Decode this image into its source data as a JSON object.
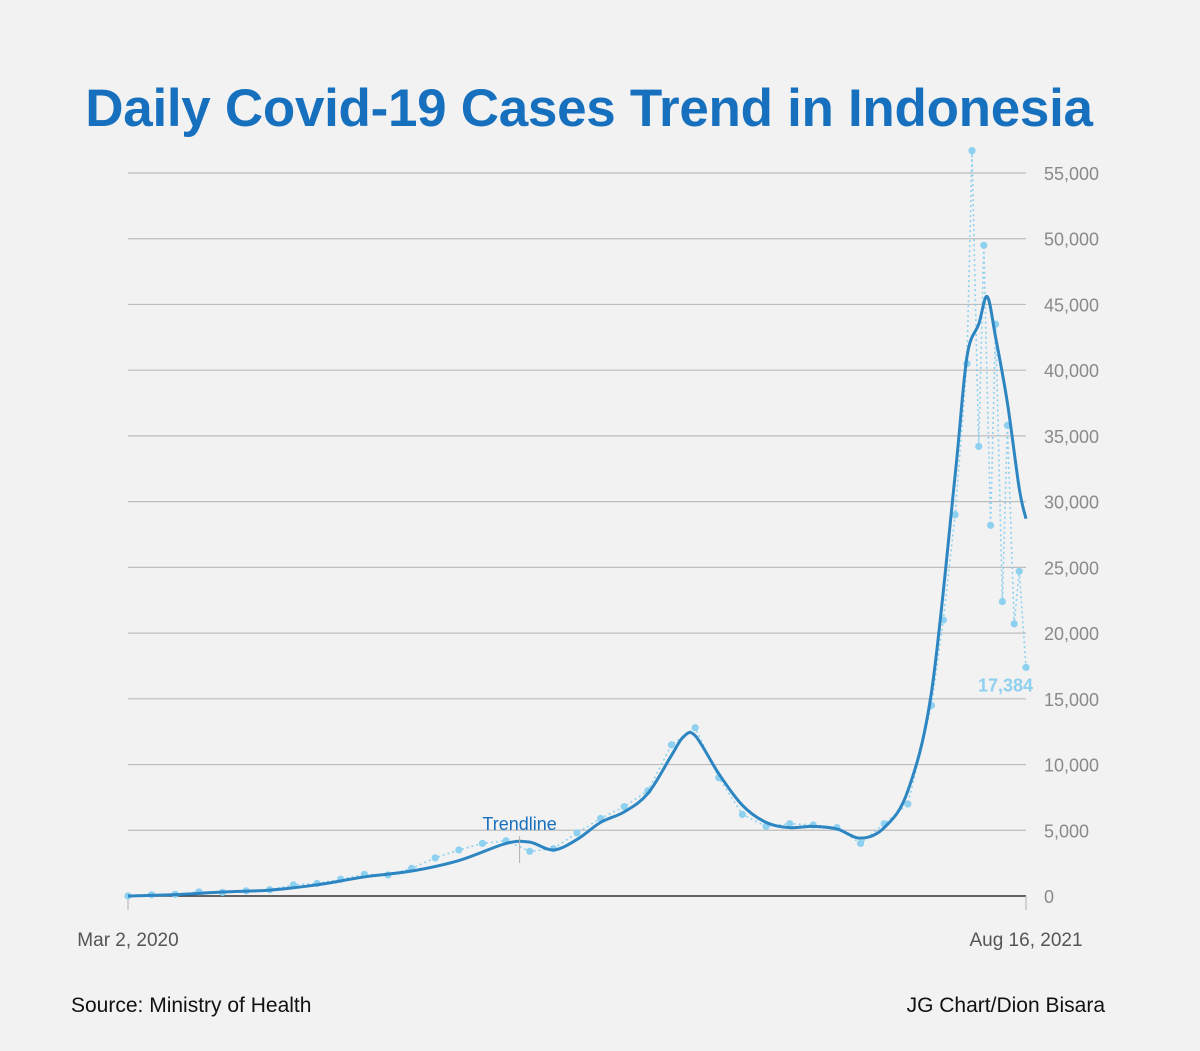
{
  "title": "Daily Covid-19 Cases Trend in Indonesia",
  "source": "Source: Ministry of Health",
  "credit": "JG Chart/Dion Bisara",
  "colors": {
    "title": "#1770bd",
    "points": "#8ed0ef",
    "trend": "#2d86c2",
    "grid": "#bdbdbd",
    "axis": "#333333",
    "tick_label": "#8a8a8a"
  },
  "chart_data": {
    "type": "line",
    "title": "Daily Covid-19 Cases Trend in Indonesia",
    "xlabel": "",
    "ylabel": "",
    "x_range": [
      "2020-03-02",
      "2021-08-16"
    ],
    "x_tick_labels": [
      "Mar 2, 2020",
      "Aug 16, 2021"
    ],
    "ylim": [
      0,
      55000
    ],
    "y_ticks": [
      0,
      5000,
      10000,
      15000,
      20000,
      25000,
      30000,
      35000,
      40000,
      45000,
      50000,
      55000
    ],
    "y_tick_labels": [
      "0",
      "5,000",
      "10,000",
      "15,000",
      "20,000",
      "25,000",
      "30,000",
      "35,000",
      "40,000",
      "45,000",
      "50,000",
      "55,000"
    ],
    "grid": true,
    "y_axis_side": "right",
    "annotations": [
      {
        "text": "Trendline",
        "x": "2020-10-20",
        "y": 1900
      },
      {
        "text": "17,384",
        "x": "2021-08-16",
        "y": 17384
      }
    ],
    "series": [
      {
        "name": "",
        "style": "dotted-line-with-points",
        "points": [
          [
            "2020-03-02",
            2
          ],
          [
            "2020-03-16",
            100
          ],
          [
            "2020-03-30",
            130
          ],
          [
            "2020-04-13",
            320
          ],
          [
            "2020-04-27",
            270
          ],
          [
            "2020-05-11",
            390
          ],
          [
            "2020-05-25",
            480
          ],
          [
            "2020-06-08",
            850
          ],
          [
            "2020-06-22",
            950
          ],
          [
            "2020-07-06",
            1280
          ],
          [
            "2020-07-20",
            1650
          ],
          [
            "2020-08-03",
            1600
          ],
          [
            "2020-08-17",
            2100
          ],
          [
            "2020-08-31",
            2900
          ],
          [
            "2020-09-14",
            3500
          ],
          [
            "2020-09-28",
            4000
          ],
          [
            "2020-10-12",
            4200
          ],
          [
            "2020-10-26",
            3400
          ],
          [
            "2020-11-09",
            3600
          ],
          [
            "2020-11-23",
            4800
          ],
          [
            "2020-12-07",
            5900
          ],
          [
            "2020-12-21",
            6800
          ],
          [
            "2021-01-04",
            8000
          ],
          [
            "2021-01-18",
            11500
          ],
          [
            "2021-02-01",
            12800
          ],
          [
            "2021-02-15",
            9000
          ],
          [
            "2021-03-01",
            6200
          ],
          [
            "2021-03-15",
            5300
          ],
          [
            "2021-03-29",
            5500
          ],
          [
            "2021-04-12",
            5400
          ],
          [
            "2021-04-26",
            5200
          ],
          [
            "2021-05-10",
            4000
          ],
          [
            "2021-05-24",
            5500
          ],
          [
            "2021-06-07",
            7000
          ],
          [
            "2021-06-21",
            14500
          ],
          [
            "2021-06-28",
            21000
          ],
          [
            "2021-07-05",
            29000
          ],
          [
            "2021-07-12",
            40500
          ],
          [
            "2021-07-15",
            56700
          ],
          [
            "2021-07-19",
            34200
          ],
          [
            "2021-07-22",
            49500
          ],
          [
            "2021-07-26",
            28200
          ],
          [
            "2021-07-29",
            43500
          ],
          [
            "2021-08-02",
            22400
          ],
          [
            "2021-08-05",
            35800
          ],
          [
            "2021-08-09",
            20700
          ],
          [
            "2021-08-12",
            24700
          ],
          [
            "2021-08-16",
            17384
          ]
        ]
      },
      {
        "name": "Trendline",
        "style": "solid-line",
        "points": [
          [
            "2020-03-02",
            0
          ],
          [
            "2020-03-30",
            100
          ],
          [
            "2020-04-27",
            300
          ],
          [
            "2020-05-25",
            450
          ],
          [
            "2020-06-22",
            850
          ],
          [
            "2020-07-20",
            1450
          ],
          [
            "2020-08-17",
            1900
          ],
          [
            "2020-09-14",
            2700
          ],
          [
            "2020-10-12",
            4000
          ],
          [
            "2020-10-26",
            4100
          ],
          [
            "2020-11-09",
            3500
          ],
          [
            "2020-11-23",
            4300
          ],
          [
            "2020-12-07",
            5600
          ],
          [
            "2020-12-21",
            6400
          ],
          [
            "2021-01-04",
            7800
          ],
          [
            "2021-01-18",
            10700
          ],
          [
            "2021-01-25",
            12100
          ],
          [
            "2021-02-01",
            12200
          ],
          [
            "2021-02-15",
            9300
          ],
          [
            "2021-03-01",
            6900
          ],
          [
            "2021-03-15",
            5600
          ],
          [
            "2021-03-29",
            5200
          ],
          [
            "2021-04-12",
            5300
          ],
          [
            "2021-04-26",
            5100
          ],
          [
            "2021-05-10",
            4400
          ],
          [
            "2021-05-24",
            5200
          ],
          [
            "2021-06-07",
            8000
          ],
          [
            "2021-06-21",
            15500
          ],
          [
            "2021-07-05",
            32000
          ],
          [
            "2021-07-12",
            41000
          ],
          [
            "2021-07-19",
            43500
          ],
          [
            "2021-07-24",
            45600
          ],
          [
            "2021-07-29",
            42500
          ],
          [
            "2021-08-05",
            37500
          ],
          [
            "2021-08-12",
            31000
          ],
          [
            "2021-08-16",
            28700
          ]
        ]
      }
    ]
  }
}
